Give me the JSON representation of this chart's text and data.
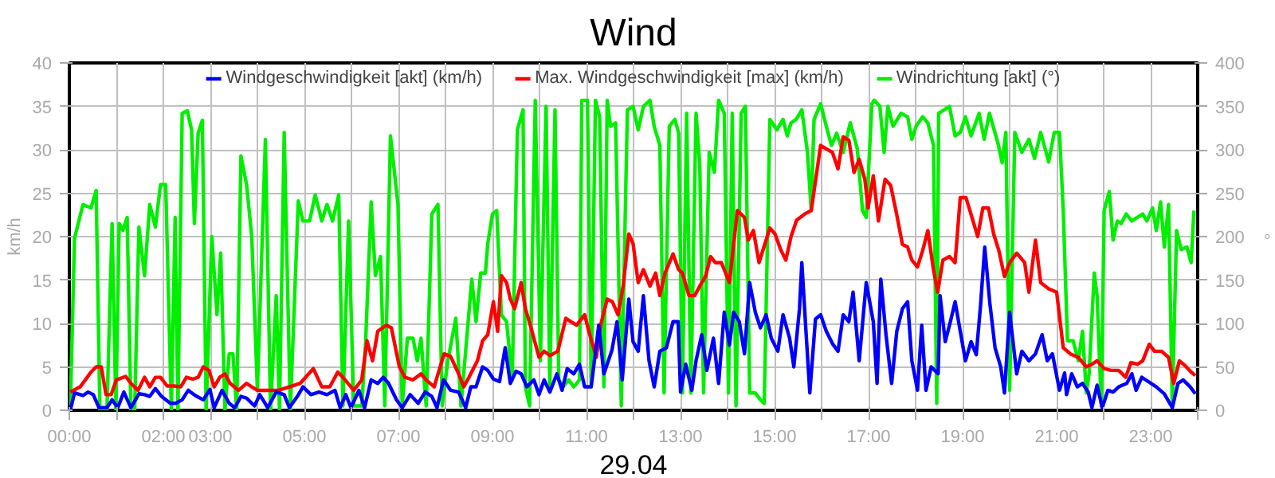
{
  "chart_data": {
    "type": "line",
    "title": "Wind",
    "xlabel": "29.04",
    "ylabel": "km/h",
    "y2label": "°",
    "xlim": [
      0,
      24
    ],
    "ylim": [
      0,
      40
    ],
    "y2lim": [
      0,
      400
    ],
    "xticks": [
      {
        "value": 0,
        "label": "00:00"
      },
      {
        "value": 1,
        "label": null
      },
      {
        "value": 2,
        "label": "02:00"
      },
      {
        "value": 3,
        "label": "03:00"
      },
      {
        "value": 4,
        "label": null
      },
      {
        "value": 5,
        "label": "05:00"
      },
      {
        "value": 6,
        "label": null
      },
      {
        "value": 7,
        "label": "07:00"
      },
      {
        "value": 8,
        "label": null
      },
      {
        "value": 9,
        "label": "09:00"
      },
      {
        "value": 10,
        "label": null
      },
      {
        "value": 11,
        "label": "11:00"
      },
      {
        "value": 12,
        "label": null
      },
      {
        "value": 13,
        "label": "13:00"
      },
      {
        "value": 14,
        "label": null
      },
      {
        "value": 15,
        "label": "15:00"
      },
      {
        "value": 16,
        "label": null
      },
      {
        "value": 17,
        "label": "17:00"
      },
      {
        "value": 18,
        "label": null
      },
      {
        "value": 19,
        "label": "19:00"
      },
      {
        "value": 20,
        "label": null
      },
      {
        "value": 21,
        "label": "21:00"
      },
      {
        "value": 22,
        "label": null
      },
      {
        "value": 23,
        "label": "23:00"
      },
      {
        "value": 24,
        "label": null
      }
    ],
    "yticks": [
      0,
      5,
      10,
      15,
      20,
      25,
      30,
      35,
      40
    ],
    "y2ticks": [
      0,
      50,
      100,
      150,
      200,
      250,
      300,
      350,
      400
    ],
    "grid": true,
    "legend": "top",
    "marker": "none",
    "line_style": "solid",
    "series": [
      {
        "name": "Windrichtung [akt] (°)",
        "color": "#00ee00",
        "axis": "y2",
        "x": [
          0.02,
          0.11,
          0.29,
          0.46,
          0.57,
          0.65,
          0.8,
          0.91,
          0.99,
          1.06,
          1.14,
          1.23,
          1.31,
          1.39,
          1.48,
          1.6,
          1.71,
          1.83,
          1.94,
          2.05,
          2.17,
          2.25,
          2.31,
          2.4,
          2.51,
          2.6,
          2.66,
          2.74,
          2.83,
          2.91,
          3.03,
          3.14,
          3.22,
          3.31,
          3.4,
          3.48,
          3.56,
          3.65,
          3.77,
          3.88,
          4.0,
          4.17,
          4.28,
          4.4,
          4.47,
          4.57,
          4.7,
          4.87,
          4.97,
          5.11,
          5.23,
          5.37,
          5.48,
          5.6,
          5.73,
          5.82,
          5.94,
          6.05,
          6.22,
          6.3,
          6.42,
          6.51,
          6.62,
          6.71,
          6.83,
          6.99,
          7.08,
          7.19,
          7.31,
          7.4,
          7.48,
          7.59,
          7.71,
          7.84,
          7.93,
          8.05,
          8.22,
          8.33,
          8.56,
          8.65,
          8.75,
          8.85,
          8.9,
          9.0,
          9.09,
          9.19,
          9.3,
          9.42,
          9.53,
          9.65,
          9.7,
          9.79,
          9.91,
          10.02,
          10.14,
          10.22,
          10.33,
          10.41,
          10.5,
          10.62,
          10.73,
          10.85,
          10.9,
          11.02,
          11.1,
          11.19,
          11.28,
          11.37,
          11.44,
          11.51,
          11.62,
          11.74,
          11.87,
          11.99,
          12.1,
          12.21,
          12.35,
          12.44,
          12.56,
          12.65,
          12.76,
          12.88,
          12.96,
          13.04,
          13.13,
          13.22,
          13.33,
          13.41,
          13.49,
          13.61,
          13.72,
          13.81,
          13.93,
          14.02,
          14.1,
          14.18,
          14.29,
          14.38,
          14.47,
          14.59,
          14.7,
          14.78,
          14.9,
          15.05,
          15.18,
          15.27,
          15.35,
          15.46,
          15.58,
          15.7,
          15.78,
          15.84,
          15.98,
          16.1,
          16.21,
          16.32,
          16.46,
          16.61,
          16.76,
          16.87,
          16.95,
          17.07,
          17.12,
          17.24,
          17.33,
          17.41,
          17.52,
          17.69,
          17.83,
          17.92,
          18.01,
          18.15,
          18.26,
          18.38,
          18.45,
          18.49,
          18.61,
          18.72,
          18.84,
          18.95,
          19.06,
          19.18,
          19.35,
          19.46,
          19.57,
          19.75,
          19.84,
          19.92,
          20.0,
          20.11,
          20.26,
          20.41,
          20.53,
          20.66,
          20.83,
          20.95,
          21.06,
          21.14,
          21.23,
          21.35,
          21.46,
          21.55,
          21.63,
          21.69,
          21.8,
          21.86,
          21.95,
          22.01,
          22.12,
          22.2,
          22.29,
          22.37,
          22.48,
          22.6,
          22.71,
          22.83,
          22.92,
          23.04,
          23.12,
          23.21,
          23.29,
          23.38,
          23.46,
          23.55,
          23.65,
          23.77,
          23.86,
          23.92
        ],
        "values": [
          0,
          198,
          237,
          233,
          253,
          0,
          0,
          215,
          0,
          215,
          207,
          222,
          0,
          0,
          211,
          155,
          237,
          211,
          260,
          260,
          0,
          222,
          0,
          342,
          345,
          323,
          215,
          319,
          334,
          0,
          200,
          110,
          181,
          0,
          65,
          65,
          0,
          293,
          260,
          200,
          23,
          312,
          0,
          132,
          0,
          320,
          0,
          241,
          218,
          218,
          248,
          218,
          237,
          218,
          248,
          5,
          218,
          5,
          5,
          76,
          240,
          155,
          177,
          5,
          316,
          237,
          5,
          83,
          83,
          57,
          83,
          5,
          226,
          237,
          5,
          57,
          106,
          5,
          151,
          102,
          158,
          158,
          192,
          226,
          230,
          110,
          102,
          35,
          323,
          346,
          27,
          5,
          357,
          57,
          350,
          27,
          346,
          35,
          27,
          35,
          27,
          35,
          357,
          357,
          27,
          357,
          338,
          27,
          357,
          327,
          331,
          5,
          346,
          350,
          323,
          350,
          357,
          327,
          305,
          20,
          327,
          335,
          319,
          20,
          342,
          20,
          342,
          282,
          20,
          297,
          274,
          357,
          342,
          20,
          342,
          5,
          342,
          350,
          20,
          20,
          12,
          8,
          335,
          323,
          335,
          316,
          331,
          335,
          346,
          297,
          230,
          335,
          353,
          327,
          305,
          319,
          297,
          331,
          301,
          230,
          222,
          353,
          357,
          350,
          297,
          350,
          327,
          342,
          338,
          312,
          327,
          338,
          331,
          305,
          8,
          342,
          346,
          350,
          316,
          320,
          338,
          316,
          342,
          312,
          342,
          308,
          285,
          320,
          23,
          320,
          297,
          312,
          290,
          320,
          286,
          320,
          320,
          230,
          80,
          80,
          57,
          91,
          20,
          42,
          158,
          132,
          5,
          230,
          252,
          196,
          218,
          215,
          226,
          218,
          222,
          226,
          218,
          233,
          207,
          240,
          188,
          237,
          5,
          207,
          185,
          188,
          170,
          230
        ]
      },
      {
        "name": "Max. Windgeschwindigkeit [max] (km/h)",
        "color": "#ff0000",
        "x": [
          0.02,
          0.23,
          0.34,
          0.46,
          0.57,
          0.68,
          0.78,
          0.89,
          1.0,
          1.2,
          1.31,
          1.46,
          1.6,
          1.71,
          1.83,
          1.94,
          2.08,
          2.23,
          2.37,
          2.49,
          2.63,
          2.74,
          2.85,
          2.97,
          3.08,
          3.2,
          3.31,
          3.42,
          3.6,
          3.77,
          3.88,
          4.0,
          4.22,
          4.45,
          4.68,
          4.91,
          5.19,
          5.37,
          5.54,
          5.71,
          5.82,
          6.05,
          6.22,
          6.33,
          6.45,
          6.56,
          6.74,
          6.85,
          7.02,
          7.14,
          7.31,
          7.48,
          7.59,
          7.76,
          7.97,
          8.11,
          8.28,
          8.39,
          8.5,
          8.68,
          8.79,
          8.9,
          9.02,
          9.11,
          9.19,
          9.3,
          9.38,
          9.47,
          9.61,
          9.7,
          9.82,
          9.99,
          10.1,
          10.22,
          10.39,
          10.56,
          10.67,
          10.79,
          10.96,
          11.07,
          11.21,
          11.3,
          11.44,
          11.55,
          11.67,
          11.78,
          11.9,
          11.99,
          12.1,
          12.21,
          12.35,
          12.47,
          12.56,
          12.67,
          12.84,
          12.96,
          13.04,
          13.18,
          13.3,
          13.41,
          13.53,
          13.64,
          13.74,
          13.87,
          14.04,
          14.21,
          14.36,
          14.44,
          14.55,
          14.67,
          14.78,
          14.9,
          15.01,
          15.13,
          15.24,
          15.35,
          15.47,
          15.64,
          15.78,
          15.98,
          16.1,
          16.23,
          16.35,
          16.46,
          16.58,
          16.69,
          16.8,
          16.92,
          16.99,
          17.1,
          17.21,
          17.35,
          17.47,
          17.6,
          17.72,
          17.83,
          17.92,
          18.04,
          18.15,
          18.26,
          18.38,
          18.47,
          18.58,
          18.72,
          18.84,
          18.95,
          19.07,
          19.2,
          19.32,
          19.43,
          19.55,
          19.66,
          19.77,
          19.89,
          20.0,
          20.15,
          20.32,
          20.41,
          20.55,
          20.66,
          20.83,
          21.0,
          21.14,
          21.29,
          21.46,
          21.63,
          21.75,
          21.86,
          22.01,
          22.15,
          22.32,
          22.47,
          22.58,
          22.72,
          22.83,
          22.97,
          23.08,
          23.23,
          23.38,
          23.49,
          23.61,
          23.74,
          23.86,
          23.95
        ],
        "values": [
          2.1,
          2.7,
          3.5,
          4.4,
          5,
          5,
          1.8,
          1.8,
          3.5,
          3.9,
          3.1,
          2.3,
          3.8,
          2.7,
          3.8,
          3.8,
          2.8,
          2.8,
          2.7,
          3.8,
          3.6,
          3.8,
          5,
          4.6,
          2.7,
          3.8,
          4.2,
          3.1,
          2.3,
          3.1,
          2.7,
          2.3,
          2.3,
          2.3,
          2.7,
          3.1,
          4.8,
          2.7,
          2.7,
          4.4,
          3.8,
          2.3,
          3.5,
          8,
          5.7,
          9.1,
          9.8,
          9.5,
          5,
          3.8,
          3.5,
          4.2,
          3.5,
          2.7,
          6.5,
          6.2,
          4.2,
          2.7,
          3.8,
          5.7,
          8,
          8.7,
          12.5,
          9.1,
          15.5,
          14.7,
          12.8,
          11.7,
          14.7,
          11.7,
          9.5,
          6.1,
          6.8,
          6.3,
          6.8,
          10.6,
          10.2,
          9.8,
          11,
          8.7,
          6.1,
          9.8,
          12.8,
          12.5,
          11,
          14.3,
          20.3,
          19.2,
          14.7,
          16.2,
          14.3,
          15.8,
          13.2,
          15.8,
          18,
          16.2,
          15.8,
          13.2,
          13.2,
          14.3,
          15.4,
          17.7,
          17,
          17,
          14.7,
          23,
          22.2,
          19.6,
          20.7,
          17,
          18.9,
          21,
          20.3,
          18.5,
          17.3,
          20,
          21.9,
          22.6,
          23,
          30.5,
          30.1,
          29.7,
          27.8,
          31.5,
          31.1,
          27.4,
          28.9,
          26.6,
          23.3,
          27,
          21.8,
          26.6,
          25.9,
          22.5,
          19.1,
          18.8,
          17.3,
          16.5,
          18.4,
          20.7,
          16.2,
          13.6,
          17.3,
          17.7,
          17,
          24.5,
          24.5,
          22.2,
          20,
          23.3,
          23.3,
          20.3,
          18.4,
          15.4,
          17,
          18.1,
          17,
          13.6,
          19.6,
          14.7,
          14,
          13.6,
          7.2,
          6.5,
          6.1,
          5,
          5.3,
          5.7,
          4.8,
          4.6,
          4.6,
          3.8,
          5.5,
          5.3,
          5.7,
          7.6,
          6.8,
          6.8,
          6.1,
          3.1,
          5.7,
          5.1,
          4.4,
          4.0
        ]
      },
      {
        "name": "Windgeschwindigkeit [akt] (km/h)",
        "color": "#0000ff",
        "x": [
          0.02,
          0.11,
          0.29,
          0.4,
          0.51,
          0.63,
          0.8,
          0.91,
          1.03,
          1.16,
          1.31,
          1.48,
          1.6,
          1.71,
          1.83,
          1.96,
          2.15,
          2.26,
          2.4,
          2.53,
          2.68,
          2.85,
          2.99,
          3.08,
          3.25,
          3.4,
          3.52,
          3.65,
          3.77,
          3.94,
          4.05,
          4.22,
          4.4,
          4.57,
          4.68,
          4.85,
          4.97,
          5.14,
          5.31,
          5.48,
          5.65,
          5.76,
          5.88,
          5.99,
          6.16,
          6.28,
          6.42,
          6.56,
          6.68,
          6.79,
          6.96,
          7.08,
          7.25,
          7.42,
          7.57,
          7.71,
          7.82,
          7.96,
          8.11,
          8.28,
          8.43,
          8.54,
          8.65,
          8.79,
          8.9,
          9.02,
          9.15,
          9.27,
          9.38,
          9.5,
          9.61,
          9.73,
          9.88,
          9.99,
          10.1,
          10.22,
          10.37,
          10.48,
          10.59,
          10.73,
          10.85,
          10.96,
          11.1,
          11.26,
          11.37,
          11.54,
          11.65,
          11.76,
          11.9,
          11.99,
          12.1,
          12.21,
          12.33,
          12.44,
          12.56,
          12.7,
          12.84,
          12.95,
          13.0,
          13.11,
          13.24,
          13.33,
          13.45,
          13.56,
          13.7,
          13.81,
          13.93,
          14.04,
          14.13,
          14.25,
          14.36,
          14.47,
          14.59,
          14.7,
          14.82,
          14.93,
          15.07,
          15.18,
          15.32,
          15.41,
          15.53,
          15.58,
          15.66,
          15.75,
          15.87,
          15.98,
          16.1,
          16.24,
          16.35,
          16.46,
          16.58,
          16.67,
          16.8,
          16.95,
          17.1,
          17.18,
          17.26,
          17.37,
          17.49,
          17.6,
          17.72,
          17.83,
          17.92,
          18.04,
          18.13,
          18.22,
          18.33,
          18.48,
          18.52,
          18.63,
          18.74,
          18.84,
          18.95,
          19.06,
          19.18,
          19.29,
          19.38,
          19.47,
          19.58,
          19.69,
          19.81,
          19.89,
          20.0,
          20.15,
          20.26,
          20.41,
          20.55,
          20.69,
          20.8,
          20.91,
          21.06,
          21.17,
          21.21,
          21.32,
          21.44,
          21.55,
          21.67,
          21.75,
          21.86,
          21.97,
          22.09,
          22.2,
          22.32,
          22.49,
          22.6,
          22.69,
          22.81,
          22.95,
          23.12,
          23.29,
          23.46,
          23.58,
          23.69,
          23.84,
          23.95
        ],
        "values": [
          0,
          2,
          1.7,
          2.1,
          1.8,
          0.3,
          0.3,
          1.2,
          0.3,
          2.1,
          0.3,
          1.9,
          1.8,
          1.6,
          2.5,
          1.6,
          0.8,
          0.8,
          1.2,
          2.3,
          1.7,
          1.2,
          2.4,
          0.3,
          2.3,
          0.8,
          0.3,
          1.6,
          1.4,
          0.5,
          1.8,
          0.3,
          2.1,
          1.8,
          0.3,
          1.6,
          2.7,
          1.8,
          2.1,
          1.8,
          2.3,
          0.3,
          1.8,
          0.3,
          2.3,
          0.3,
          3.5,
          3.1,
          3.8,
          3.1,
          1.2,
          0.3,
          1.8,
          0.8,
          2.1,
          1.6,
          0.3,
          3.5,
          2.3,
          2.1,
          0.3,
          2.7,
          2.7,
          5,
          4.6,
          3.6,
          3.3,
          7.2,
          3.1,
          4.5,
          4.2,
          2.7,
          3.5,
          1.8,
          3.5,
          2.1,
          4.2,
          2.3,
          4.8,
          4.2,
          5.3,
          2.7,
          2.7,
          9.8,
          4.2,
          6.9,
          10.2,
          3.5,
          12.8,
          7.9,
          6.8,
          13.2,
          5.7,
          2.7,
          6.8,
          7.2,
          10.2,
          10.2,
          2.1,
          5.3,
          2.3,
          5.7,
          8.7,
          4.6,
          8.3,
          3.1,
          11.3,
          7.5,
          11.3,
          10.2,
          6.5,
          14.7,
          11.3,
          9.5,
          11,
          8.3,
          6.8,
          11,
          8.3,
          5,
          11.7,
          17,
          9.8,
          2,
          10.5,
          11,
          9.1,
          7.6,
          6.8,
          11,
          10.2,
          13.6,
          5.7,
          14.7,
          10.2,
          3.1,
          15.1,
          8.7,
          3.1,
          9.1,
          11.7,
          12.5,
          5.7,
          2.3,
          9.8,
          2.3,
          5,
          4.2,
          13.2,
          7.9,
          10.2,
          12.5,
          9.1,
          5.7,
          7.9,
          6.4,
          12,
          18.8,
          12.3,
          7.2,
          5,
          2,
          11.3,
          4.2,
          6.8,
          5.7,
          6.5,
          8.7,
          5.7,
          6.5,
          2.3,
          4.3,
          1.8,
          4.2,
          2.7,
          3.1,
          2.1,
          0.3,
          2.9,
          0.3,
          2.3,
          2.1,
          2.7,
          3.1,
          4.2,
          2.3,
          3.8,
          3.3,
          2.7,
          1.9,
          0.3,
          3.1,
          3.5,
          2.7,
          1.9
        ]
      }
    ]
  }
}
